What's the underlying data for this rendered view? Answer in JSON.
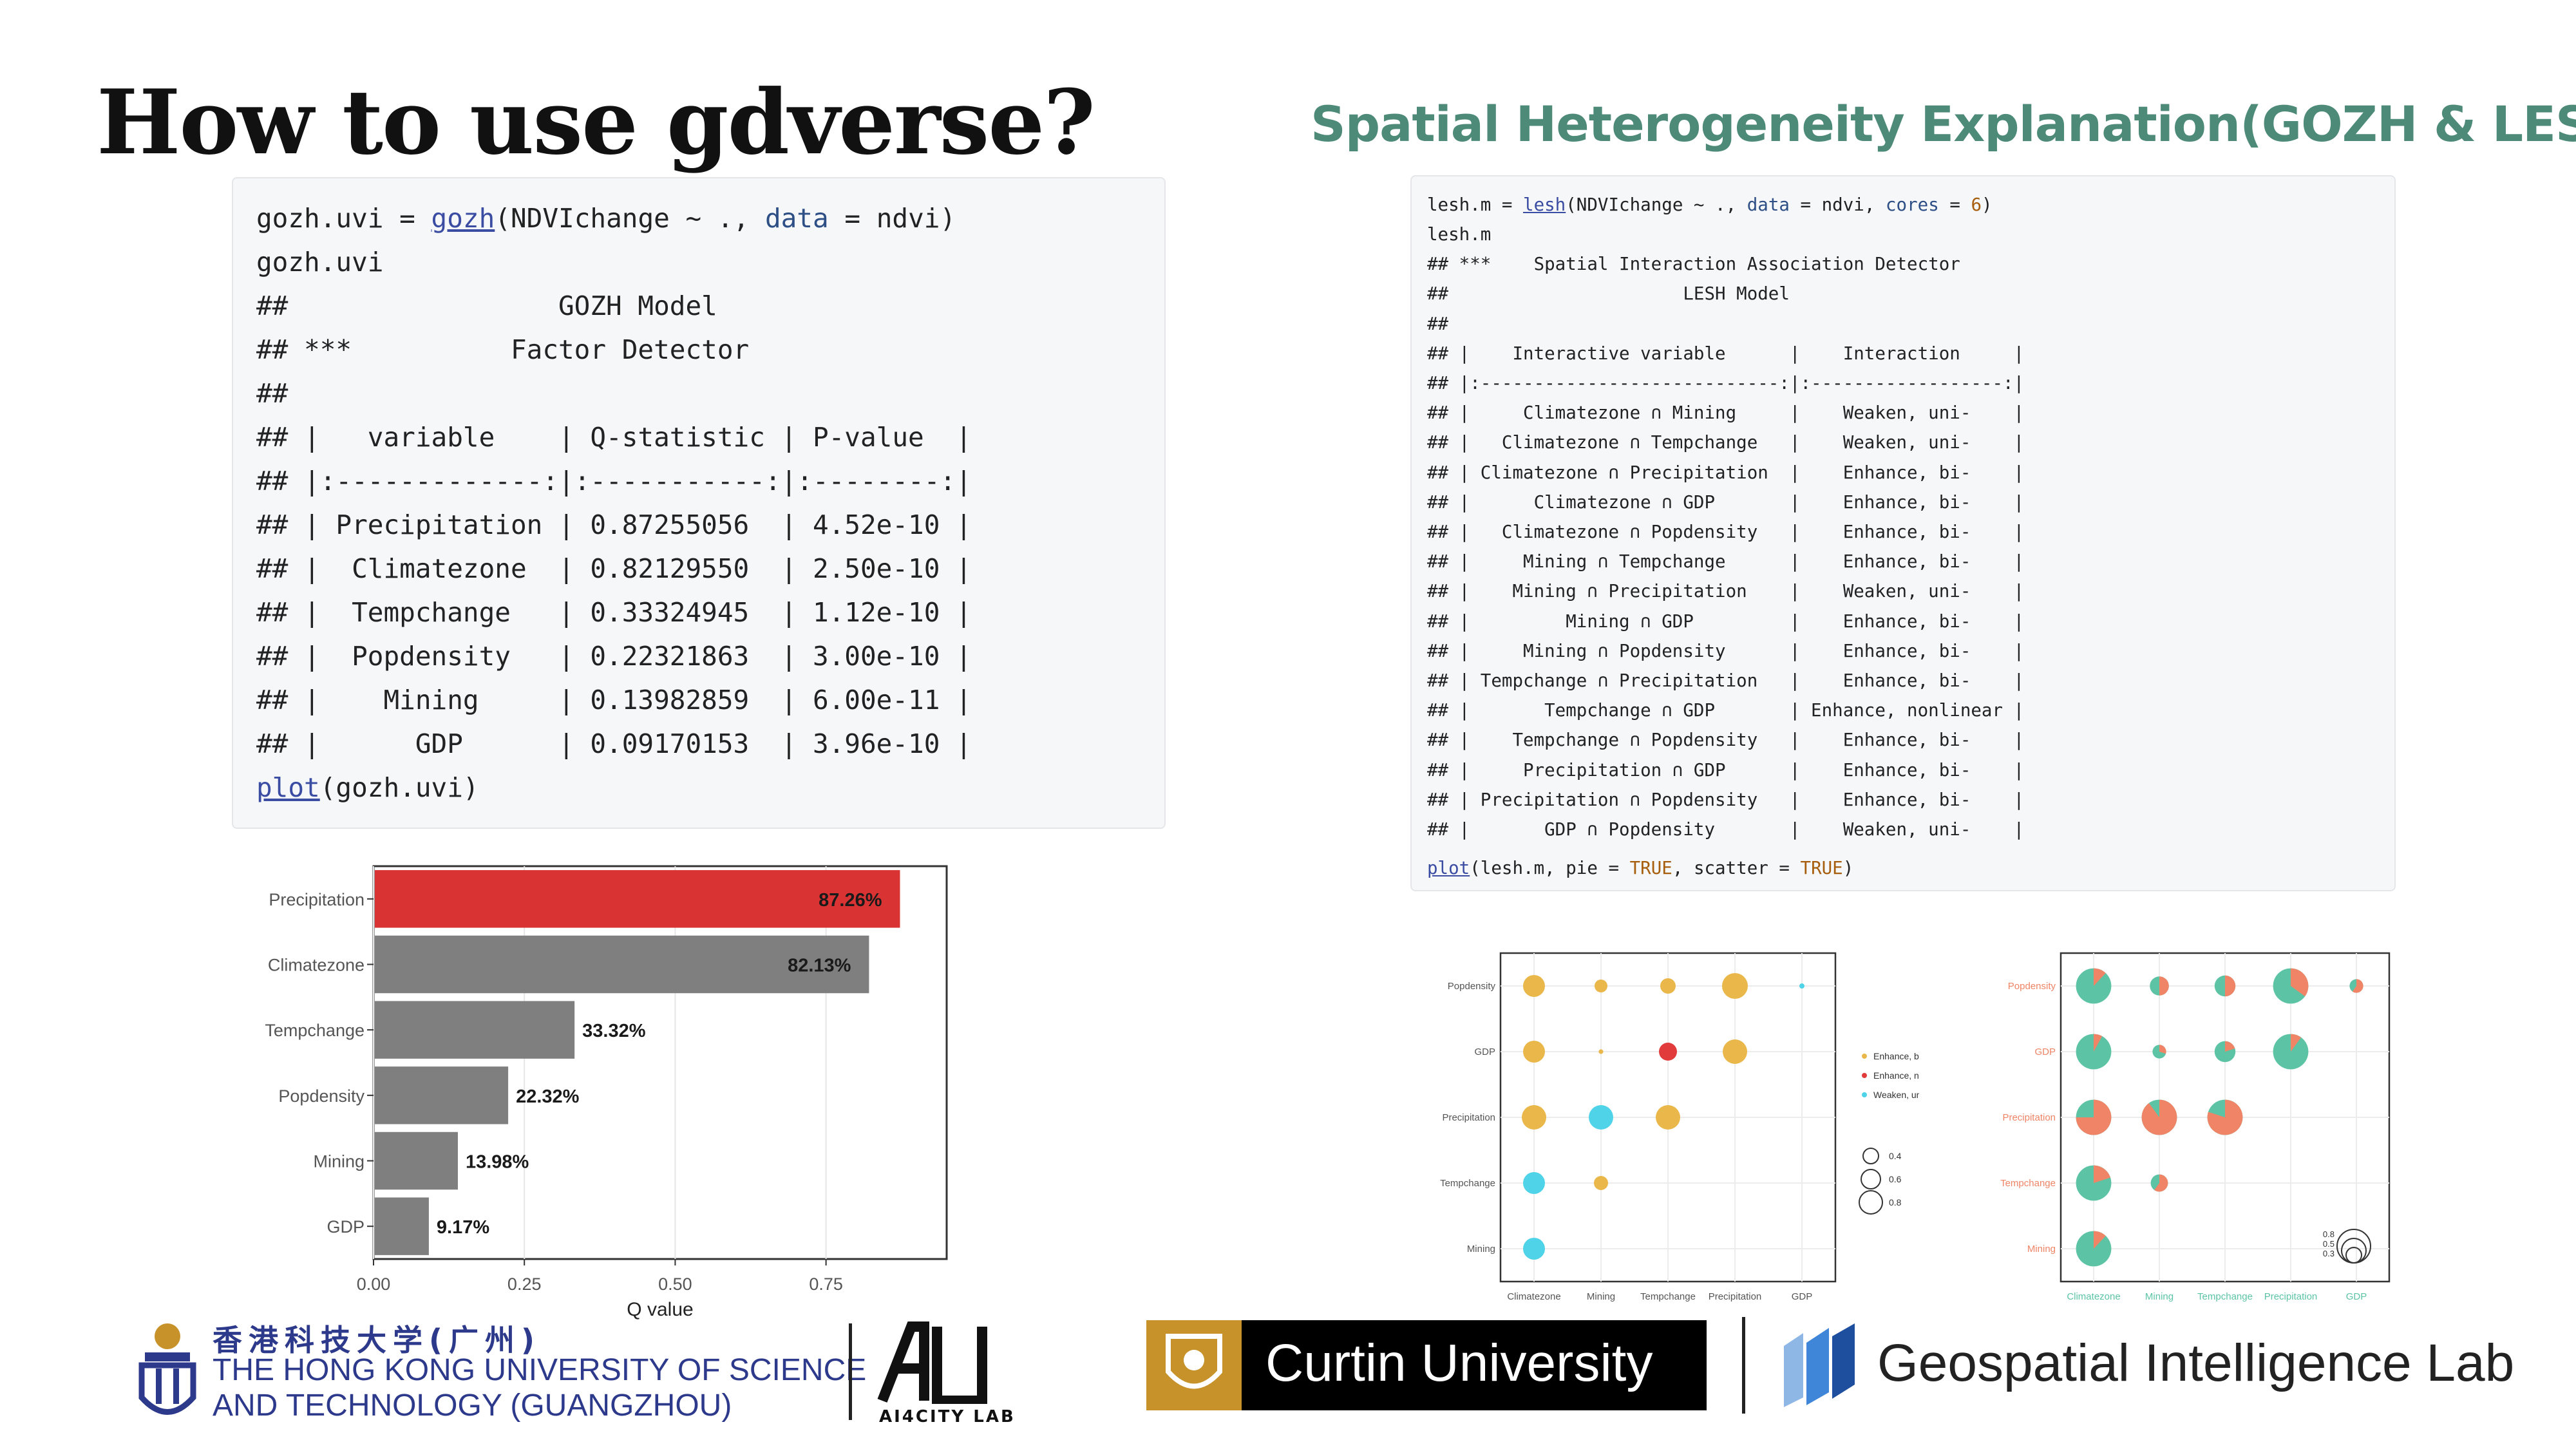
{
  "slide": {
    "title": "How to use gdverse?",
    "subtitle": "Spatial Heterogeneity Explanation(GOZH & LESH)"
  },
  "gozh_code": {
    "call": {
      "var": "gozh.uvi",
      "op": " = ",
      "fn": "gozh",
      "open": "(NDVIchange ~ ., ",
      "arg": "data",
      "rest": " = ndvi)"
    },
    "lines": [
      "gozh.uvi",
      "##                 GOZH Model",
      "## ***          Factor Detector",
      "##",
      "## |   variable    | Q-statistic | P-value  |",
      "## |:-------------:|:-----------:|:--------:|",
      "## | Precipitation | 0.87255056  | 4.52e-10 |",
      "## |  Climatezone  | 0.82129550  | 2.50e-10 |",
      "## |  Tempchange   | 0.33324945  | 1.12e-10 |",
      "## |  Popdensity   | 0.22321863  | 3.00e-10 |",
      "## |    Mining     | 0.13982859  | 6.00e-11 |",
      "## |      GDP      | 0.09170153  | 3.96e-10 |"
    ],
    "plot_call": {
      "fn": "plot",
      "rest": "(gozh.uvi)"
    }
  },
  "lesh_code": {
    "call": {
      "var": "lesh.m",
      "op": " = ",
      "fn": "lesh",
      "open": "(NDVIchange ~ ., ",
      "arg1": "data",
      "mid": " = ndvi, ",
      "arg2": "cores",
      "eq": " = ",
      "num": "6",
      "close": ")"
    },
    "lines": [
      "lesh.m",
      "## ***    Spatial Interaction Association Detector",
      "##                      LESH Model",
      "##",
      "## |    Interactive variable      |    Interaction     |",
      "## |:----------------------------:|:------------------:|",
      "## |     Climatezone ∩ Mining     |    Weaken, uni-    |",
      "## |   Climatezone ∩ Tempchange   |    Weaken, uni-    |",
      "## | Climatezone ∩ Precipitation  |    Enhance, bi-    |",
      "## |      Climatezone ∩ GDP       |    Enhance, bi-    |",
      "## |   Climatezone ∩ Popdensity   |    Enhance, bi-    |",
      "## |     Mining ∩ Tempchange      |    Enhance, bi-    |",
      "## |    Mining ∩ Precipitation    |    Weaken, uni-    |",
      "## |         Mining ∩ GDP         |    Enhance, bi-    |",
      "## |     Mining ∩ Popdensity      |    Enhance, bi-    |",
      "## | Tempchange ∩ Precipitation   |    Enhance, bi-    |",
      "## |       Tempchange ∩ GDP       | Enhance, nonlinear |",
      "## |    Tempchange ∩ Popdensity   |    Enhance, bi-    |",
      "## |     Precipitation ∩ GDP      |    Enhance, bi-    |",
      "## | Precipitation ∩ Popdensity   |    Enhance, bi-    |",
      "## |       GDP ∩ Popdensity       |    Weaken, uni-    |"
    ],
    "plot_call": {
      "fn": "plot",
      "open": "(lesh.m, pie = ",
      "b1": "TRUE",
      "mid": ", scatter = ",
      "b2": "TRUE",
      "close": ")"
    }
  },
  "chart_data": [
    {
      "type": "bar",
      "orientation": "horizontal",
      "categories": [
        "Precipitation",
        "Climatezone",
        "Tempchange",
        "Popdensity",
        "Mining",
        "GDP"
      ],
      "values": [
        0.8726,
        0.8213,
        0.3332,
        0.2232,
        0.1398,
        0.0917
      ],
      "data_labels": [
        "87.26%",
        "82.13%",
        "33.32%",
        "22.32%",
        "13.98%",
        "9.17%"
      ],
      "xlabel": "Q value",
      "xlim": [
        0,
        0.95
      ],
      "xticks": [
        "0.00",
        "0.25",
        "0.50",
        "0.75"
      ],
      "xtick_values": [
        0,
        0.25,
        0.5,
        0.75
      ],
      "highlight_color": "#d93333",
      "bar_color": "#7f7f7f",
      "grid": true
    },
    {
      "type": "scatter",
      "x_categories": [
        "Climatezone",
        "Mining",
        "Tempchange",
        "Precipitation",
        "GDP"
      ],
      "y_categories": [
        "Popdensity",
        "GDP",
        "Precipitation",
        "Tempchange",
        "Mining"
      ],
      "points": [
        {
          "x": "Climatezone",
          "y": "Popdensity",
          "size": 0.7,
          "class": "Enhance, bi-"
        },
        {
          "x": "Mining",
          "y": "Popdensity",
          "size": 0.35,
          "class": "Enhance, bi-"
        },
        {
          "x": "Tempchange",
          "y": "Popdensity",
          "size": 0.45,
          "class": "Enhance, bi-"
        },
        {
          "x": "Precipitation",
          "y": "Popdensity",
          "size": 0.85,
          "class": "Enhance, bi-"
        },
        {
          "x": "GDP",
          "y": "Popdensity",
          "size": 0.05,
          "class": "Weaken, uni-"
        },
        {
          "x": "Climatezone",
          "y": "GDP",
          "size": 0.7,
          "class": "Enhance, bi-"
        },
        {
          "x": "Mining",
          "y": "GDP",
          "size": 0.03,
          "class": "Enhance, bi-"
        },
        {
          "x": "Tempchange",
          "y": "GDP",
          "size": 0.55,
          "class": "Enhance, nonlinear"
        },
        {
          "x": "Precipitation",
          "y": "GDP",
          "size": 0.8,
          "class": "Enhance, bi-"
        },
        {
          "x": "Climatezone",
          "y": "Precipitation",
          "size": 0.8,
          "class": "Enhance, bi-"
        },
        {
          "x": "Mining",
          "y": "Precipitation",
          "size": 0.8,
          "class": "Weaken, uni-"
        },
        {
          "x": "Tempchange",
          "y": "Precipitation",
          "size": 0.8,
          "class": "Enhance, bi-"
        },
        {
          "x": "Climatezone",
          "y": "Tempchange",
          "size": 0.7,
          "class": "Weaken, uni-"
        },
        {
          "x": "Mining",
          "y": "Tempchange",
          "size": 0.4,
          "class": "Enhance, bi-"
        },
        {
          "x": "Climatezone",
          "y": "Mining",
          "size": 0.7,
          "class": "Weaken, uni-"
        }
      ],
      "legend_classes": [
        "Enhance, bi-",
        "Enhance, nonlinear",
        "Weaken, uni-"
      ],
      "legend_colors": {
        "Enhance, bi-": "#eab84a",
        "Enhance, nonlinear": "#e13b3b",
        "Weaken, uni-": "#4fd3e8"
      },
      "size_legend": [
        "0.4",
        "0.6",
        "0.8"
      ],
      "grid": true
    },
    {
      "type": "pie",
      "x_categories": [
        "Climatezone",
        "Mining",
        "Tempchange",
        "Precipitation",
        "GDP"
      ],
      "y_categories": [
        "Popdensity",
        "GDP",
        "Precipitation",
        "Tempchange",
        "Mining"
      ],
      "pies": [
        {
          "x": "Climatezone",
          "y": "Popdensity",
          "size": 0.8,
          "share": 0.12
        },
        {
          "x": "Mining",
          "y": "Popdensity",
          "size": 0.35,
          "share": 0.5
        },
        {
          "x": "Tempchange",
          "y": "Popdensity",
          "size": 0.4,
          "share": 0.5
        },
        {
          "x": "Precipitation",
          "y": "Popdensity",
          "size": 0.8,
          "share": 0.35
        },
        {
          "x": "GDP",
          "y": "Popdensity",
          "size": 0.2,
          "share": 0.6
        },
        {
          "x": "Climatezone",
          "y": "GDP",
          "size": 0.8,
          "share": 0.08
        },
        {
          "x": "Mining",
          "y": "GDP",
          "size": 0.2,
          "share": 0.3
        },
        {
          "x": "Tempchange",
          "y": "GDP",
          "size": 0.4,
          "share": 0.2
        },
        {
          "x": "Precipitation",
          "y": "GDP",
          "size": 0.8,
          "share": 0.1
        },
        {
          "x": "Climatezone",
          "y": "Precipitation",
          "size": 0.8,
          "share": 0.75
        },
        {
          "x": "Mining",
          "y": "Precipitation",
          "size": 0.8,
          "share": 0.9
        },
        {
          "x": "Tempchange",
          "y": "Precipitation",
          "size": 0.8,
          "share": 0.8
        },
        {
          "x": "Climatezone",
          "y": "Tempchange",
          "size": 0.8,
          "share": 0.2
        },
        {
          "x": "Mining",
          "y": "Tempchange",
          "size": 0.3,
          "share": 0.6
        },
        {
          "x": "Climatezone",
          "y": "Mining",
          "size": 0.8,
          "share": 0.12
        }
      ],
      "pie_colors": [
        "#ef8466",
        "#5cc4a4"
      ],
      "x_label_color": "#5cc4a4",
      "y_label_color": "#ef8466",
      "size_legend": [
        "0.8",
        "0.5",
        "0.3"
      ],
      "grid": true
    }
  ],
  "logos": {
    "hkust_cn": "香港科技大学(广州)",
    "hkust_en_1": "THE HONG KONG UNIVERSITY OF SCIENCE",
    "hkust_en_2": "AND TECHNOLOGY (GUANGZHOU)",
    "ai4city": "AI4CITY LAB",
    "curtin": "Curtin University",
    "gil": "Geospatial Intelligence Lab"
  }
}
